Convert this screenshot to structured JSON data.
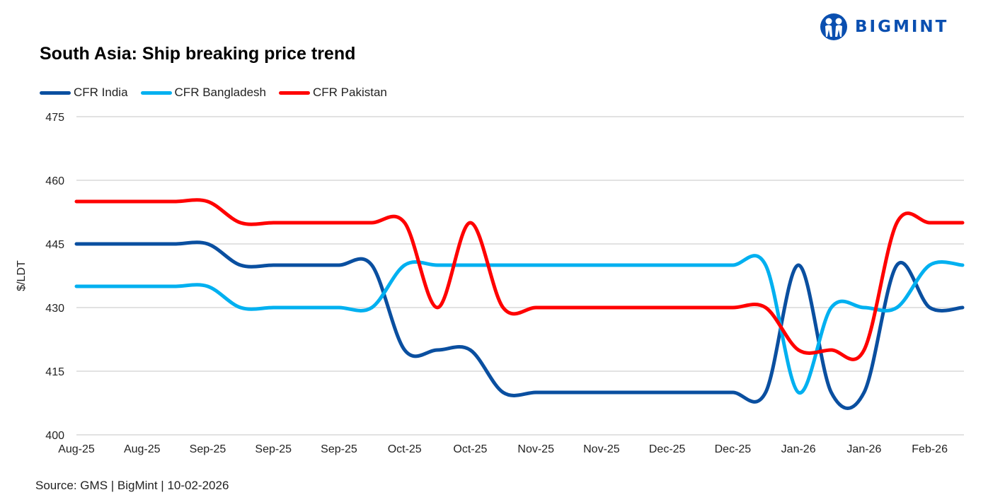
{
  "header": {
    "title": "South Asia: Ship breaking  price trend",
    "logo_text": "BIGMINT",
    "brand_color": "#0a4fb0"
  },
  "footer": {
    "source": "Source: GMS | BigMint  | 10-02-2026"
  },
  "chart_data": {
    "type": "line",
    "title": "South Asia: Ship breaking  price trend",
    "xlabel": "",
    "ylabel": "$/LDT",
    "ylim": [
      400,
      475
    ],
    "yticks": [
      400,
      415,
      430,
      445,
      460,
      475
    ],
    "grid": true,
    "legend_position": "top-left",
    "smoothed": true,
    "categories": [
      "Aug-25",
      "",
      "Aug-25",
      "",
      "Sep-25",
      "",
      "Sep-25",
      "",
      "Sep-25",
      "",
      "Oct-25",
      "",
      "Oct-25",
      "",
      "Nov-25",
      "",
      "Nov-25",
      "",
      "Dec-25",
      "",
      "Dec-25",
      "",
      "Jan-26",
      "",
      "Jan-26",
      "",
      "Feb-26",
      ""
    ],
    "series": [
      {
        "name": "CFR India",
        "color": "#0a4fa0",
        "values": [
          445,
          445,
          445,
          445,
          445,
          440,
          440,
          440,
          440,
          440,
          420,
          420,
          420,
          410,
          410,
          410,
          410,
          410,
          410,
          410,
          410,
          410,
          440,
          410,
          410,
          440,
          430,
          430
        ]
      },
      {
        "name": "CFR Bangladesh",
        "color": "#00b0f0",
        "values": [
          435,
          435,
          435,
          435,
          435,
          430,
          430,
          430,
          430,
          430,
          440,
          440,
          440,
          440,
          440,
          440,
          440,
          440,
          440,
          440,
          440,
          440,
          410,
          430,
          430,
          430,
          440,
          440
        ]
      },
      {
        "name": "CFR Pakistan",
        "color": "#ff0000",
        "values": [
          455,
          455,
          455,
          455,
          455,
          450,
          450,
          450,
          450,
          450,
          450,
          430,
          450,
          430,
          430,
          430,
          430,
          430,
          430,
          430,
          430,
          430,
          420,
          420,
          420,
          450,
          450,
          450
        ]
      }
    ]
  }
}
